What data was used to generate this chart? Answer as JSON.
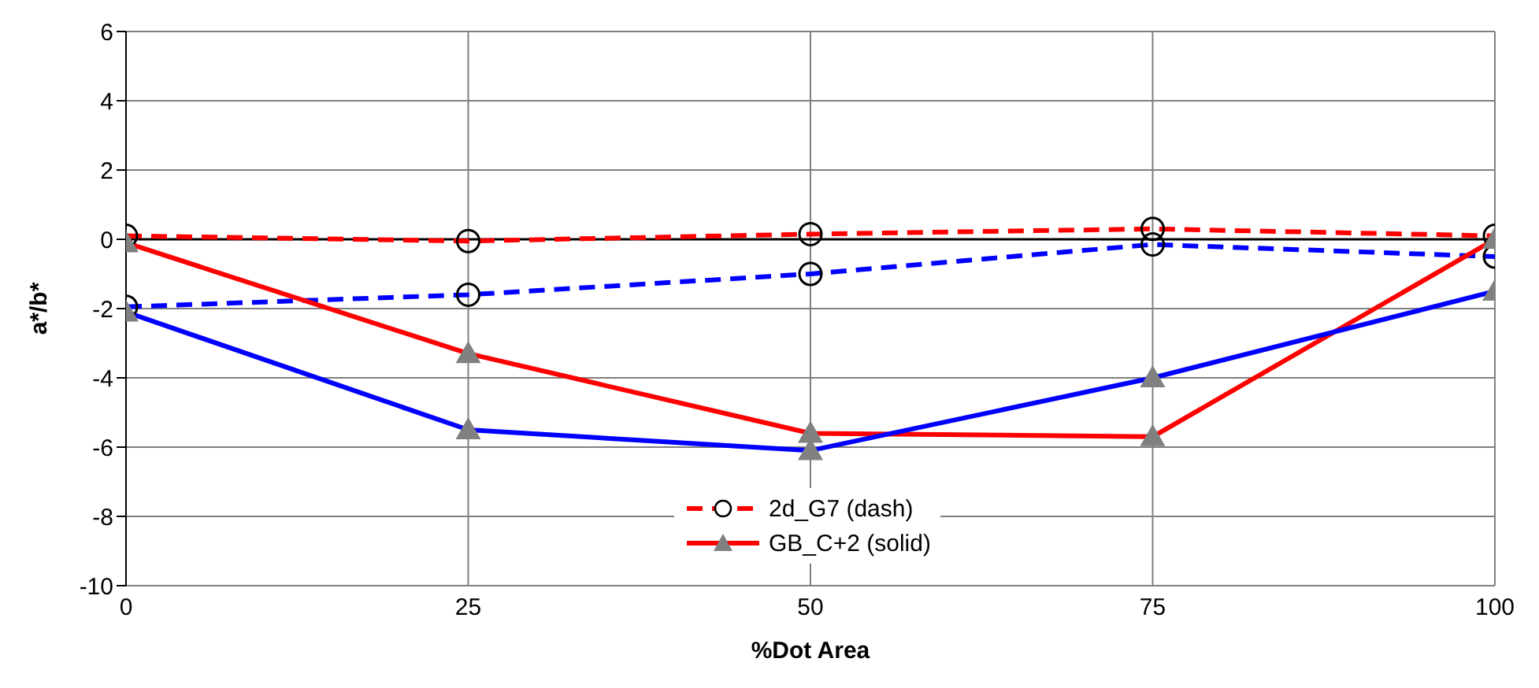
{
  "chart_data": {
    "type": "line",
    "xlabel": "%Dot Area",
    "ylabel": "a*/b*",
    "x": [
      0,
      25,
      50,
      75,
      100
    ],
    "series": [
      {
        "name": "2d_G7 (dash)",
        "color": "#ff0000",
        "line_style": "dashed",
        "marker": "circle",
        "values": [
          0.1,
          -0.05,
          0.15,
          0.3,
          0.1
        ]
      },
      {
        "color": "#0000ff",
        "line_style": "dashed",
        "marker": "circle",
        "values": [
          -1.95,
          -1.6,
          -1.0,
          -0.15,
          -0.5
        ]
      },
      {
        "name": "GB_C+2 (solid)",
        "color": "#ff0000",
        "line_style": "solid",
        "marker": "triangle",
        "values": [
          -0.1,
          -3.3,
          -5.6,
          -5.7,
          0.0
        ]
      },
      {
        "color": "#0000ff",
        "line_style": "solid",
        "marker": "triangle",
        "values": [
          -2.1,
          -5.5,
          -6.1,
          -4.0,
          -1.5
        ]
      }
    ],
    "xlim": [
      0,
      100
    ],
    "xticks": [
      0,
      25,
      50,
      75,
      100
    ],
    "ylim": [
      -10,
      6
    ],
    "yticks": [
      -10,
      -8,
      -6,
      -4,
      -2,
      0,
      2,
      4,
      6
    ],
    "ref_lines": [
      {
        "axis": "y",
        "value": 0,
        "color": "#000000"
      }
    ],
    "grid": true,
    "legend": "bottom"
  }
}
